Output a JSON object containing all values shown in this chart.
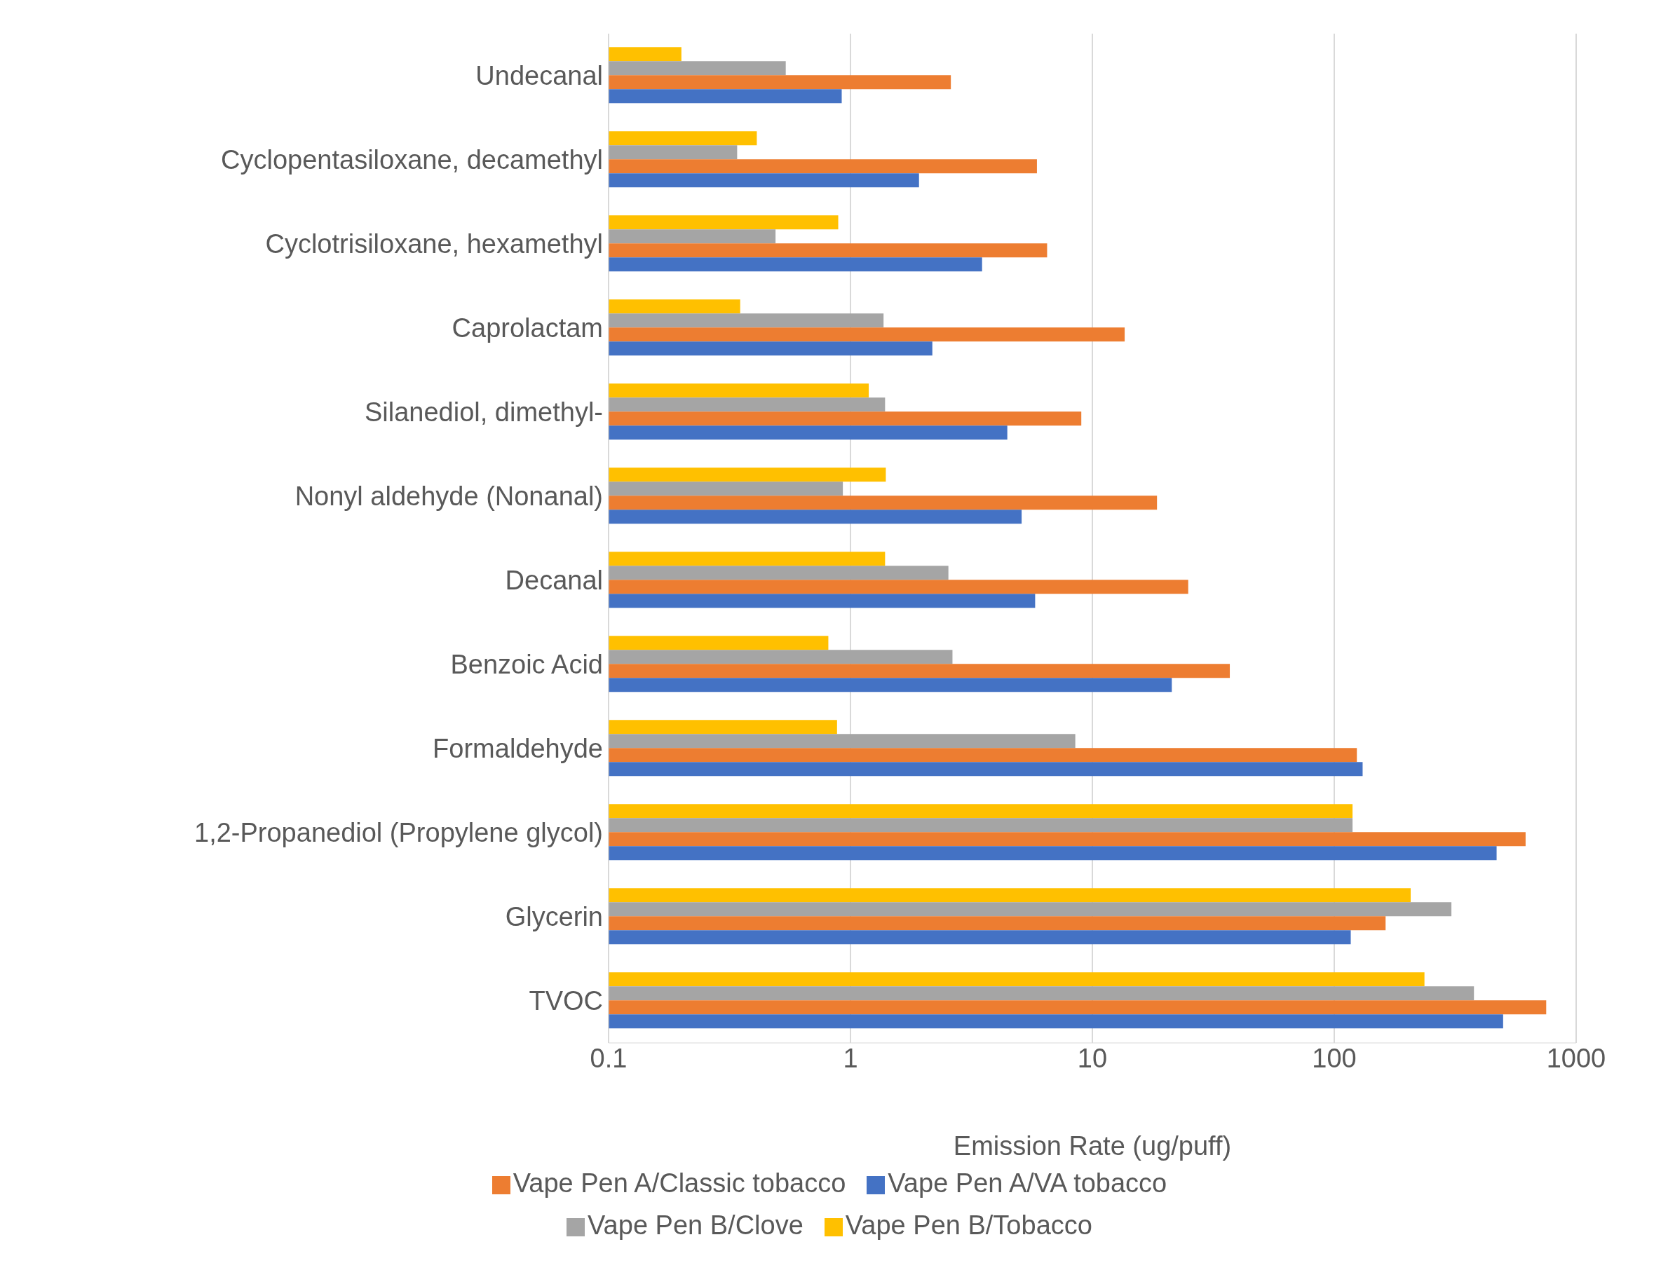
{
  "chart_data": {
    "type": "bar",
    "orientation": "horizontal",
    "xlabel": "Emission Rate (ug/puff)",
    "log": "x",
    "xlim": [
      0.1,
      1000
    ],
    "xticks": [
      0.1,
      1,
      10,
      100,
      1000
    ],
    "grid": "x",
    "legend": "bottom",
    "categories": [
      "Undecanal",
      "Cyclopentasiloxane, decamethyl",
      "Cyclotrisiloxane, hexamethyl",
      "Caprolactam",
      "Silanediol, dimethyl-",
      "Nonyl aldehyde (Nonanal)",
      "Decanal",
      "Benzoic Acid",
      "Formaldehyde",
      "1,2-Propanediol  (Propylene glycol)",
      "Glycerin",
      "TVOC"
    ],
    "series": [
      {
        "name": "Vape Pen B/Tobacco",
        "color": "#ffc000",
        "values": [
          0.2,
          0.41,
          0.89,
          0.35,
          1.19,
          1.4,
          1.39,
          0.81,
          0.88,
          119,
          207,
          236
        ]
      },
      {
        "name": "Vape Pen B/Clove",
        "color": "#a5a5a5",
        "values": [
          0.54,
          0.34,
          0.49,
          1.37,
          1.39,
          0.93,
          2.54,
          2.64,
          8.5,
          119,
          305,
          378
        ]
      },
      {
        "name": "Vape Pen A/Classic tobacco",
        "color": "#ed7d31",
        "values": [
          2.6,
          5.9,
          6.5,
          13.6,
          9.0,
          18.5,
          24.9,
          37,
          124,
          618,
          163,
          752
        ]
      },
      {
        "name": "Vape Pen A/VA tobacco",
        "color": "#4472c4",
        "values": [
          0.92,
          1.92,
          3.5,
          2.18,
          4.45,
          5.1,
          5.8,
          21.3,
          131,
          469,
          117,
          499
        ]
      }
    ]
  }
}
